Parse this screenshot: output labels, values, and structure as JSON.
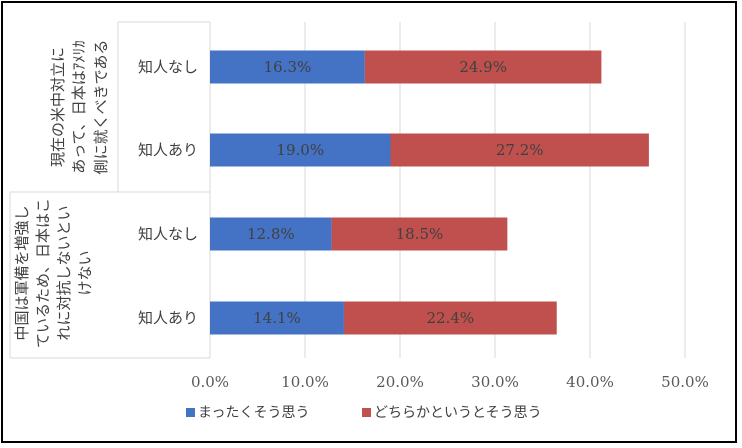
{
  "chart_data": {
    "type": "bar",
    "orientation": "horizontal",
    "stacked": true,
    "groups": [
      {
        "lines": [
          "現在の米中対立に",
          "あって、日本はｱﾒﾘｶ",
          "側に就くべきである"
        ],
        "categories": [
          "知人なし",
          "知人あり"
        ]
      },
      {
        "lines": [
          "中国は軍備を増強し",
          "ているため、日本はこ",
          "れに対抗しないとい",
          "けない"
        ],
        "categories": [
          "知人なし",
          "知人あり"
        ]
      }
    ],
    "series": [
      {
        "name": "まったくそう思う",
        "color": "#4472C4",
        "values": [
          16.3,
          19.0,
          12.8,
          14.1
        ],
        "labels": [
          "16.3%",
          "19.0%",
          "12.8%",
          "14.1%"
        ]
      },
      {
        "name": "どちらかというとそう思う",
        "color": "#C0504D",
        "values": [
          24.9,
          27.2,
          18.5,
          22.4
        ],
        "labels": [
          "24.9%",
          "27.2%",
          "18.5%",
          "22.4%"
        ]
      }
    ],
    "xlim": [
      0,
      50
    ],
    "xticks": [
      0,
      10,
      20,
      30,
      40,
      50
    ],
    "xtick_labels": [
      "0.0%",
      "10.0%",
      "20.0%",
      "30.0%",
      "40.0%",
      "50.0%"
    ],
    "grid": "vertical",
    "legend_position": "bottom"
  }
}
